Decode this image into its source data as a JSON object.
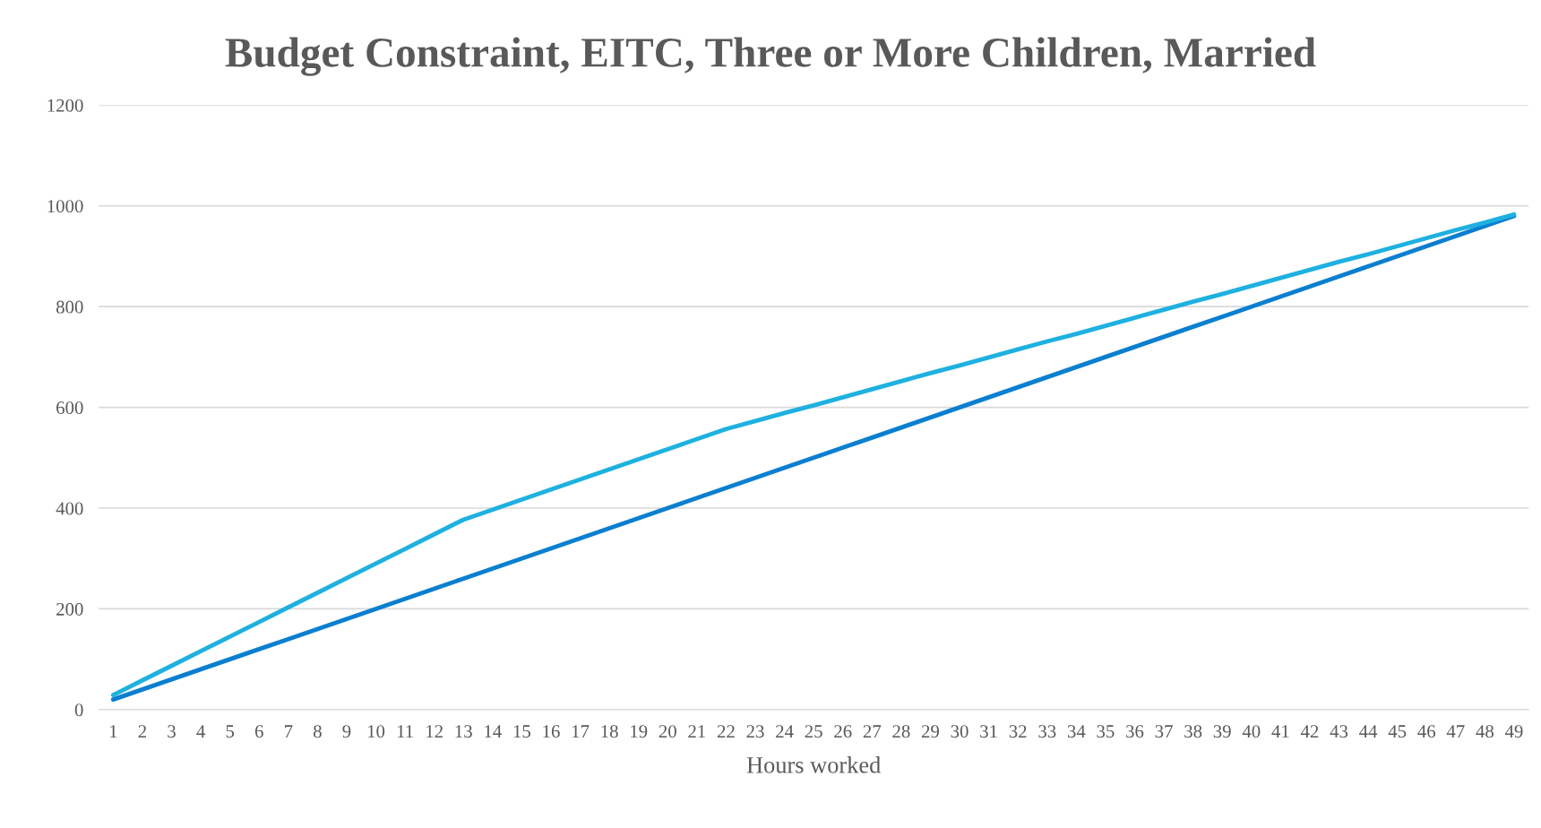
{
  "chart_data": {
    "type": "line",
    "title": "Budget Constraint, EITC, Three or More Children, Married",
    "xlabel": "Hours worked",
    "categories": [
      "1",
      "2",
      "3",
      "4",
      "5",
      "6",
      "7",
      "8",
      "9",
      "10",
      "11",
      "12",
      "13",
      "14",
      "15",
      "16",
      "17",
      "18",
      "19",
      "20",
      "21",
      "22",
      "23",
      "24",
      "25",
      "26",
      "27",
      "28",
      "29",
      "30",
      "31",
      "32",
      "33",
      "34",
      "35",
      "36",
      "37",
      "38",
      "39",
      "40",
      "41",
      "42",
      "43",
      "44",
      "45",
      "46",
      "47",
      "48",
      "49"
    ],
    "series": [
      {
        "color": "#0a7fd0",
        "values": [
          20,
          40,
          60,
          80,
          100,
          120,
          140,
          160,
          180,
          200,
          220,
          240,
          260,
          280,
          300,
          320,
          340,
          360,
          380,
          400,
          420,
          440,
          460,
          480,
          500,
          520,
          540,
          560,
          580,
          600,
          620,
          640,
          660,
          680,
          700,
          720,
          740,
          760,
          780,
          800,
          820,
          840,
          860,
          880,
          900,
          920,
          940,
          960,
          980
        ]
      },
      {
        "color": "#1eb1e0",
        "values": [
          29,
          58,
          87,
          116,
          145,
          174,
          203,
          232,
          261,
          290,
          319,
          348,
          377,
          397,
          417,
          437,
          457,
          477,
          497,
          517,
          537,
          557,
          573,
          589,
          604,
          620,
          636,
          652,
          668,
          683,
          699,
          715,
          731,
          746,
          762,
          778,
          794,
          810,
          825,
          841,
          857,
          873,
          889,
          904,
          920,
          936,
          952,
          967,
          983
        ]
      }
    ],
    "ylim": [
      0,
      1200
    ],
    "yticks": [
      0,
      200,
      400,
      600,
      800,
      1000,
      1200
    ],
    "grid": "y",
    "marker": "none",
    "line_style": "solid"
  }
}
